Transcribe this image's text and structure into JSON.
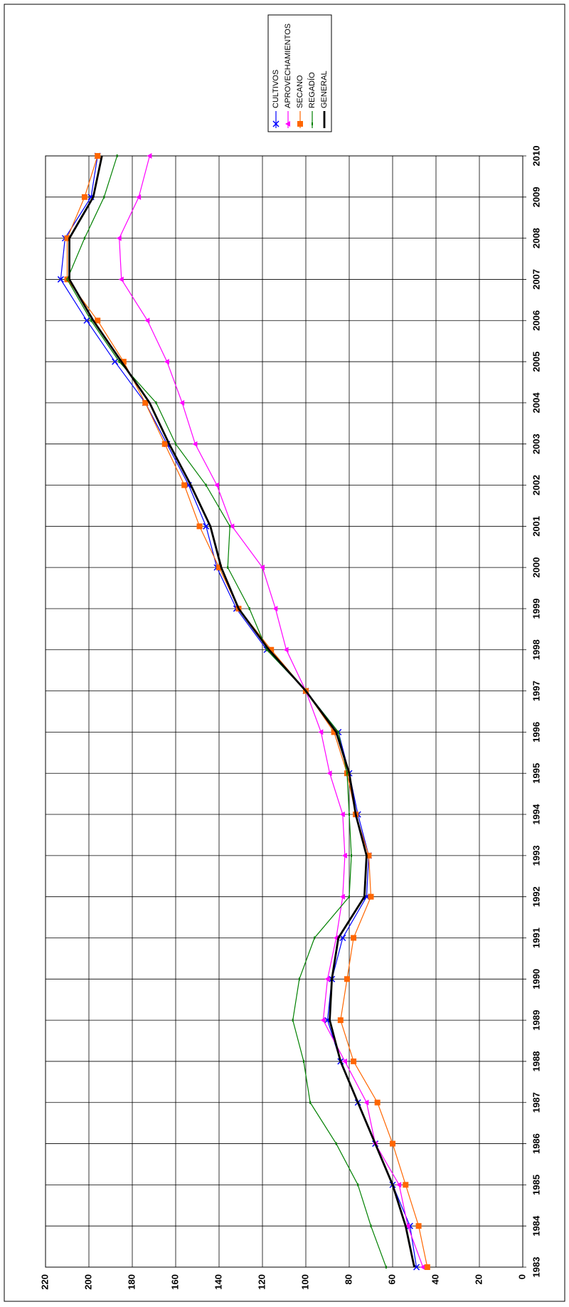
{
  "chart_data": {
    "type": "line",
    "categories": [
      "1983",
      "1984",
      "1985",
      "1986",
      "1987",
      "1988",
      "1989",
      "1990",
      "1991",
      "1992",
      "1993",
      "1994",
      "1995",
      "1996",
      "1997",
      "1998",
      "1999",
      "2000",
      "2001",
      "2002",
      "2003",
      "2004",
      "2005",
      "2006",
      "2007",
      "2008",
      "2009",
      "2010"
    ],
    "series": [
      {
        "name": "CULTIVOS",
        "color": "#0000ff",
        "marker": "x",
        "values": [
          49,
          52,
          60,
          68,
          76,
          84,
          90,
          88,
          83,
          72,
          71,
          76,
          80,
          85,
          100,
          118,
          132,
          141,
          146,
          154,
          164,
          174,
          188,
          201,
          213,
          211,
          199,
          196
        ]
      },
      {
        "name": "APROVECHAMIENTOS",
        "color": "#ff00ff",
        "marker": "triangle",
        "values": [
          46,
          53,
          57,
          68,
          72,
          82,
          92,
          90,
          86,
          83,
          82,
          83,
          89,
          93,
          100,
          109,
          114,
          120,
          134,
          141,
          151,
          157,
          164,
          173,
          185,
          186,
          177,
          172
        ]
      },
      {
        "name": "SECANO",
        "color": "#ff6600",
        "marker": "square",
        "values": [
          44,
          48,
          54,
          60,
          67,
          78,
          84,
          81,
          78,
          70,
          71,
          77,
          81,
          87,
          100,
          116,
          131,
          140,
          149,
          156,
          165,
          174,
          184,
          196,
          210,
          210,
          202,
          196
        ]
      },
      {
        "name": "REGADÍO",
        "color": "#008000",
        "marker": "dash",
        "values": [
          63,
          70,
          76,
          86,
          98,
          101,
          106,
          103,
          96,
          80,
          79,
          80,
          81,
          85,
          100,
          118,
          126,
          136,
          135,
          146,
          160,
          169,
          186,
          199,
          210,
          202,
          193,
          187
        ]
      },
      {
        "name": "GENERAL",
        "color": "#000000",
        "marker": "none",
        "values": [
          50,
          54,
          60,
          68,
          76,
          84,
          89,
          88,
          85,
          73,
          72,
          77,
          80,
          86,
          100,
          117,
          131,
          139,
          144,
          153,
          163,
          172,
          185,
          198,
          209,
          209,
          198,
          194
        ]
      }
    ],
    "ylim": [
      0,
      220
    ],
    "yticks": [
      0,
      20,
      40,
      60,
      80,
      100,
      120,
      140,
      160,
      180,
      200,
      220
    ],
    "grid": true
  }
}
